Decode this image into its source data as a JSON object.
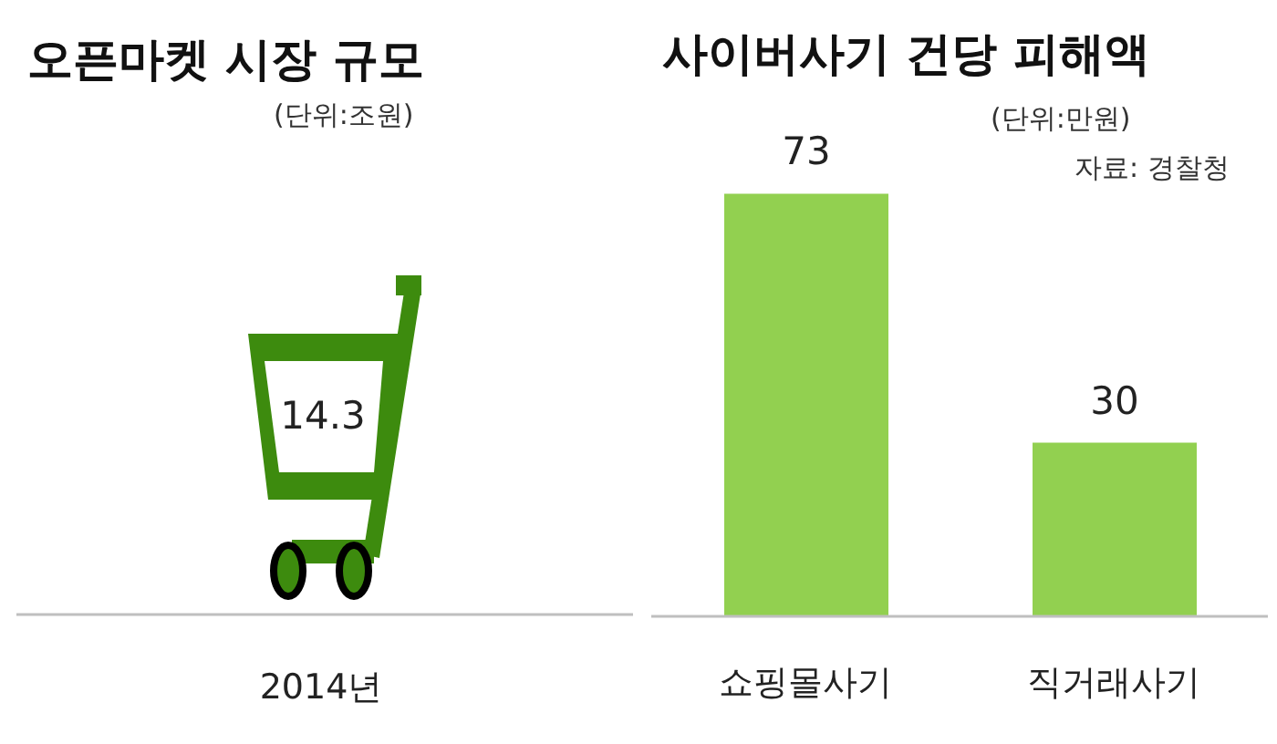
{
  "chart_data": [
    {
      "type": "other",
      "title": "오픈마켓 시장 규모",
      "subtitle": "(단위:조원)",
      "categories": [
        "2014년"
      ],
      "values": [
        14.3
      ],
      "data_labels": true
    },
    {
      "type": "bar",
      "title": "사이버사기 건당 피해액",
      "subtitle": "(단위:만원)",
      "annotations": [
        "자료: 경찰청"
      ],
      "categories": [
        "쇼핑몰사기",
        "직거래사기"
      ],
      "values": [
        73,
        30
      ],
      "color": "#92d050",
      "data_labels": true
    }
  ]
}
